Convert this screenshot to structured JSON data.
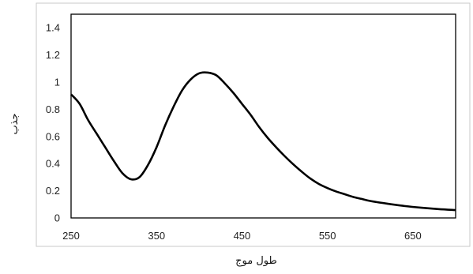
{
  "chart_data": {
    "type": "line",
    "title": "",
    "xlabel": "طول موج",
    "ylabel": "جذب",
    "xlim": [
      250,
      700
    ],
    "ylim": [
      0,
      1.5
    ],
    "x_ticks": [
      250,
      350,
      450,
      550,
      650
    ],
    "y_ticks": [
      0,
      0.2,
      0.4,
      0.6,
      0.8,
      1,
      1.2,
      1.4
    ],
    "grid": false,
    "legend": "none",
    "series": [
      {
        "color": "#000000",
        "points": [
          [
            250,
            0.91
          ],
          [
            260,
            0.84
          ],
          [
            270,
            0.72
          ],
          [
            280,
            0.62
          ],
          [
            290,
            0.52
          ],
          [
            300,
            0.42
          ],
          [
            310,
            0.33
          ],
          [
            320,
            0.285
          ],
          [
            330,
            0.3
          ],
          [
            340,
            0.39
          ],
          [
            350,
            0.52
          ],
          [
            360,
            0.68
          ],
          [
            370,
            0.82
          ],
          [
            380,
            0.94
          ],
          [
            390,
            1.02
          ],
          [
            400,
            1.065
          ],
          [
            410,
            1.07
          ],
          [
            420,
            1.05
          ],
          [
            430,
            0.99
          ],
          [
            440,
            0.92
          ],
          [
            450,
            0.84
          ],
          [
            460,
            0.76
          ],
          [
            470,
            0.67
          ],
          [
            480,
            0.59
          ],
          [
            490,
            0.52
          ],
          [
            500,
            0.455
          ],
          [
            510,
            0.395
          ],
          [
            520,
            0.34
          ],
          [
            530,
            0.29
          ],
          [
            540,
            0.25
          ],
          [
            550,
            0.22
          ],
          [
            560,
            0.195
          ],
          [
            570,
            0.175
          ],
          [
            580,
            0.155
          ],
          [
            590,
            0.14
          ],
          [
            600,
            0.125
          ],
          [
            620,
            0.105
          ],
          [
            640,
            0.088
          ],
          [
            660,
            0.075
          ],
          [
            680,
            0.065
          ],
          [
            700,
            0.058
          ]
        ]
      }
    ]
  }
}
